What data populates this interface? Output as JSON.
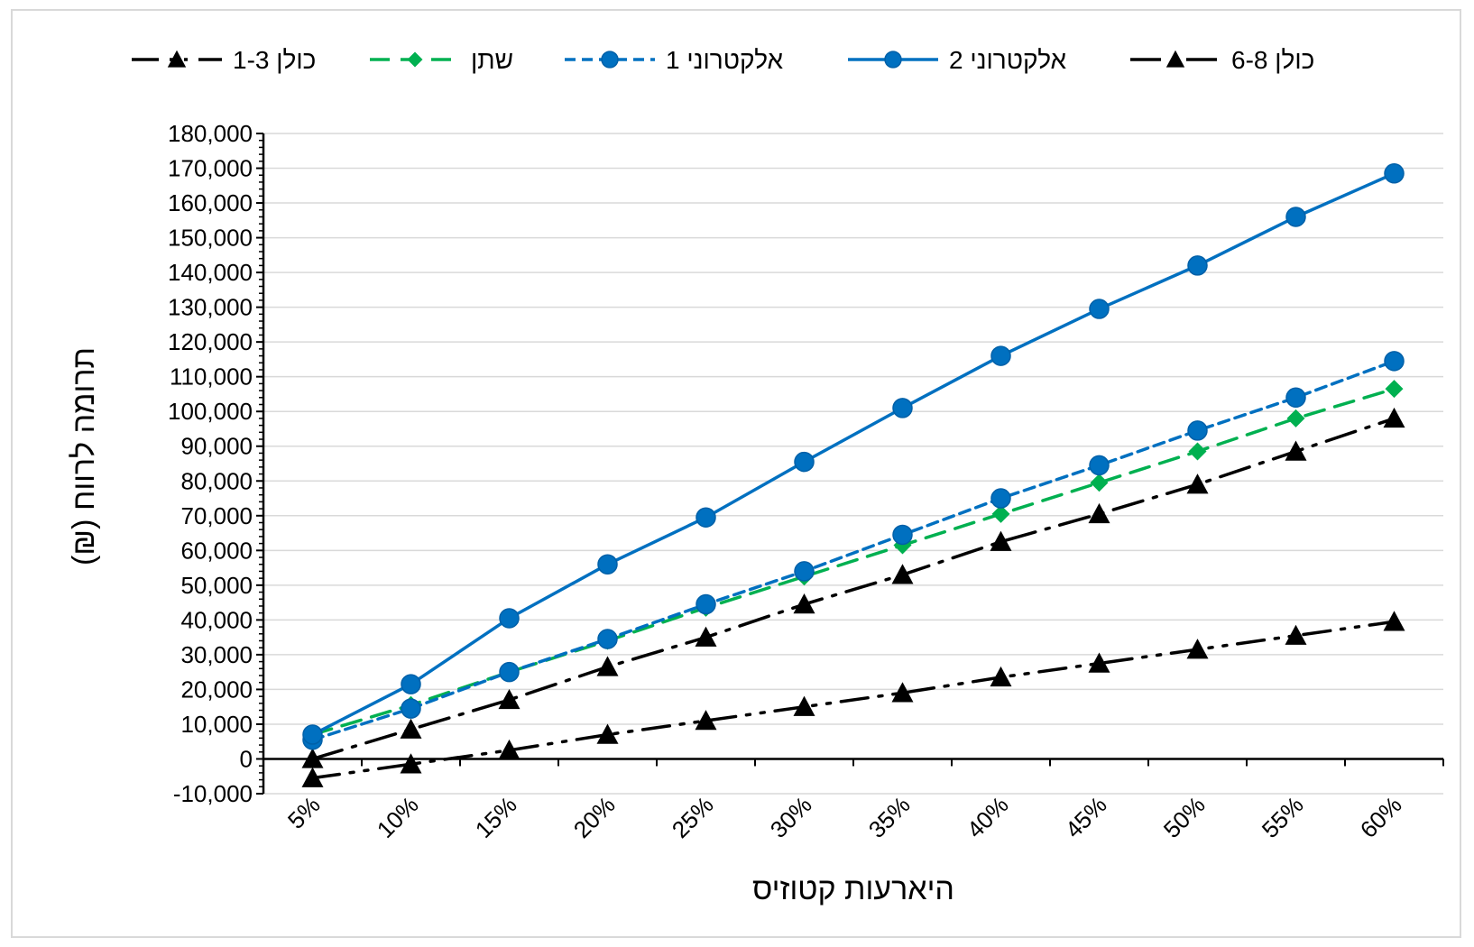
{
  "chart_data": {
    "type": "line",
    "title": "",
    "xlabel": "היארעות קטוזיס",
    "ylabel": "תרומה לרווח (₪)",
    "ylim": [
      -10000,
      180000
    ],
    "yticks": [
      -10000,
      0,
      10000,
      20000,
      30000,
      40000,
      50000,
      60000,
      70000,
      80000,
      90000,
      100000,
      110000,
      120000,
      130000,
      140000,
      150000,
      160000,
      170000,
      180000
    ],
    "ytick_labels": [
      "-10,000",
      "0",
      "10,000",
      "20,000",
      "30,000",
      "40,000",
      "50,000",
      "60,000",
      "70,000",
      "80,000",
      "90,000",
      "100,000",
      "110,000",
      "120,000",
      "130,000",
      "140,000",
      "150,000",
      "160,000",
      "170,000",
      "180,000"
    ],
    "categories": [
      "5%",
      "10%",
      "15%",
      "20%",
      "25%",
      "30%",
      "35%",
      "40%",
      "45%",
      "50%",
      "55%",
      "60%"
    ],
    "grid": true,
    "legend_position": "top",
    "series": [
      {
        "name": "כולן 1-3",
        "color": "#000000",
        "marker": "triangle",
        "dash": "long-dash-dot-dot",
        "values": [
          -5500,
          -1500,
          2500,
          7000,
          11000,
          15000,
          19000,
          23500,
          27500,
          31500,
          35500,
          39500
        ]
      },
      {
        "name": "שתן",
        "color": "#00b050",
        "marker": "diamond",
        "dash": "dash",
        "values": [
          7000,
          15500,
          25000,
          34000,
          43500,
          52500,
          61500,
          70500,
          79500,
          88500,
          98000,
          106500
        ]
      },
      {
        "name": "אלקטרוני 1",
        "color": "#0070c0",
        "marker": "circle",
        "dash": "short-dash",
        "values": [
          5500,
          14500,
          25000,
          34500,
          44500,
          54000,
          64500,
          75000,
          84500,
          94500,
          104000,
          114500
        ]
      },
      {
        "name": "אלקטרוני 2",
        "color": "#0070c0",
        "marker": "circle",
        "dash": "solid",
        "values": [
          7000,
          21500,
          40500,
          56000,
          69500,
          85500,
          101000,
          116000,
          129500,
          142000,
          156000,
          168500
        ]
      },
      {
        "name": "כולן 6-8",
        "color": "#000000",
        "marker": "triangle",
        "dash": "long-dash-dot",
        "values": [
          0,
          8500,
          17000,
          26500,
          35000,
          44500,
          53000,
          62500,
          70500,
          79000,
          88500,
          98000
        ]
      }
    ]
  }
}
